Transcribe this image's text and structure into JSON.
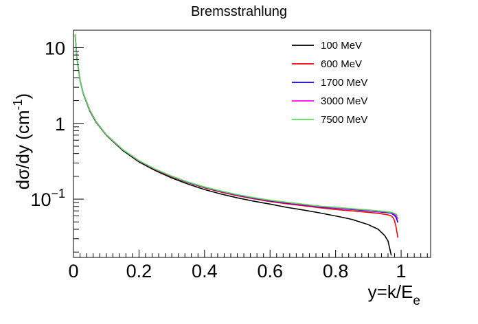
{
  "chart_data": {
    "type": "line",
    "title": "Bremsstrahlung",
    "xlabel": {
      "main": "y=k/E",
      "sub": "e"
    },
    "ylabel": {
      "pre": "dσ/dy (cm",
      "sup": "-1",
      "post": ")"
    },
    "xlim": [
      0,
      1.09
    ],
    "ylim": [
      0.017,
      17
    ],
    "yscale": "log",
    "x_ticks": [
      0,
      0.2,
      0.4,
      0.6,
      0.8,
      1
    ],
    "x_tick_labels": [
      "0",
      "0.2",
      "0.4",
      "0.6",
      "0.8",
      "1"
    ],
    "y_ticks": [
      {
        "value": 10,
        "label": "10"
      },
      {
        "value": 1,
        "label": "1"
      },
      {
        "value": 0.1,
        "base": "10",
        "exp": "−1"
      }
    ],
    "grid": false,
    "legend_position": "top-right",
    "x": [
      0.005,
      0.01,
      0.02,
      0.03,
      0.05,
      0.07,
      0.1,
      0.15,
      0.2,
      0.25,
      0.3,
      0.35,
      0.4,
      0.45,
      0.5,
      0.55,
      0.6,
      0.65,
      0.7,
      0.75,
      0.8,
      0.85,
      0.9,
      0.93,
      0.95,
      0.96,
      0.97,
      0.975,
      0.98,
      0.985,
      0.99
    ],
    "series": [
      {
        "name": "100 MeV",
        "color": "#000000",
        "values": [
          15.0,
          7.5,
          3.7,
          2.45,
          1.45,
          1.02,
          0.7,
          0.44,
          0.31,
          0.238,
          0.19,
          0.158,
          0.134,
          0.117,
          0.104,
          0.094,
          0.086,
          0.078,
          0.072,
          0.066,
          0.06,
          0.054,
          0.046,
          0.04,
          0.033,
          0.028,
          0.018,
          null,
          null,
          null,
          null
        ]
      },
      {
        "name": "600 MeV",
        "color": "#ff0000",
        "values": [
          15.0,
          7.6,
          3.75,
          2.5,
          1.48,
          1.04,
          0.71,
          0.45,
          0.318,
          0.245,
          0.197,
          0.165,
          0.141,
          0.124,
          0.111,
          0.101,
          0.093,
          0.087,
          0.082,
          0.077,
          0.073,
          0.07,
          0.067,
          0.065,
          0.063,
          0.062,
          0.06,
          0.057,
          0.052,
          0.042,
          0.031
        ]
      },
      {
        "name": "1700 MeV",
        "color": "#0000ff",
        "values": [
          15.0,
          7.6,
          3.76,
          2.5,
          1.49,
          1.04,
          0.71,
          0.45,
          0.32,
          0.247,
          0.199,
          0.166,
          0.143,
          0.126,
          0.113,
          0.103,
          0.095,
          0.089,
          0.084,
          0.079,
          0.076,
          0.073,
          0.07,
          0.068,
          0.067,
          0.066,
          0.065,
          0.063,
          0.061,
          0.057,
          0.049
        ]
      },
      {
        "name": "3000 MeV",
        "color": "#ff00ff",
        "values": [
          15.0,
          7.6,
          3.76,
          2.5,
          1.49,
          1.04,
          0.71,
          0.451,
          0.321,
          0.248,
          0.2,
          0.167,
          0.144,
          0.127,
          0.114,
          0.104,
          0.096,
          0.09,
          0.085,
          0.08,
          0.077,
          0.074,
          0.071,
          0.069,
          0.068,
          0.067,
          0.066,
          0.065,
          0.063,
          0.06,
          0.055
        ]
      },
      {
        "name": "7500 MeV",
        "color": "#55dd55",
        "values": [
          15.0,
          7.6,
          3.76,
          2.5,
          1.49,
          1.04,
          0.71,
          0.452,
          0.322,
          0.249,
          0.201,
          0.168,
          0.145,
          0.128,
          0.115,
          0.105,
          0.097,
          0.091,
          0.086,
          0.081,
          0.078,
          0.075,
          0.072,
          0.07,
          0.069,
          0.068,
          0.067,
          0.066,
          0.065,
          0.063,
          0.06
        ]
      }
    ]
  }
}
